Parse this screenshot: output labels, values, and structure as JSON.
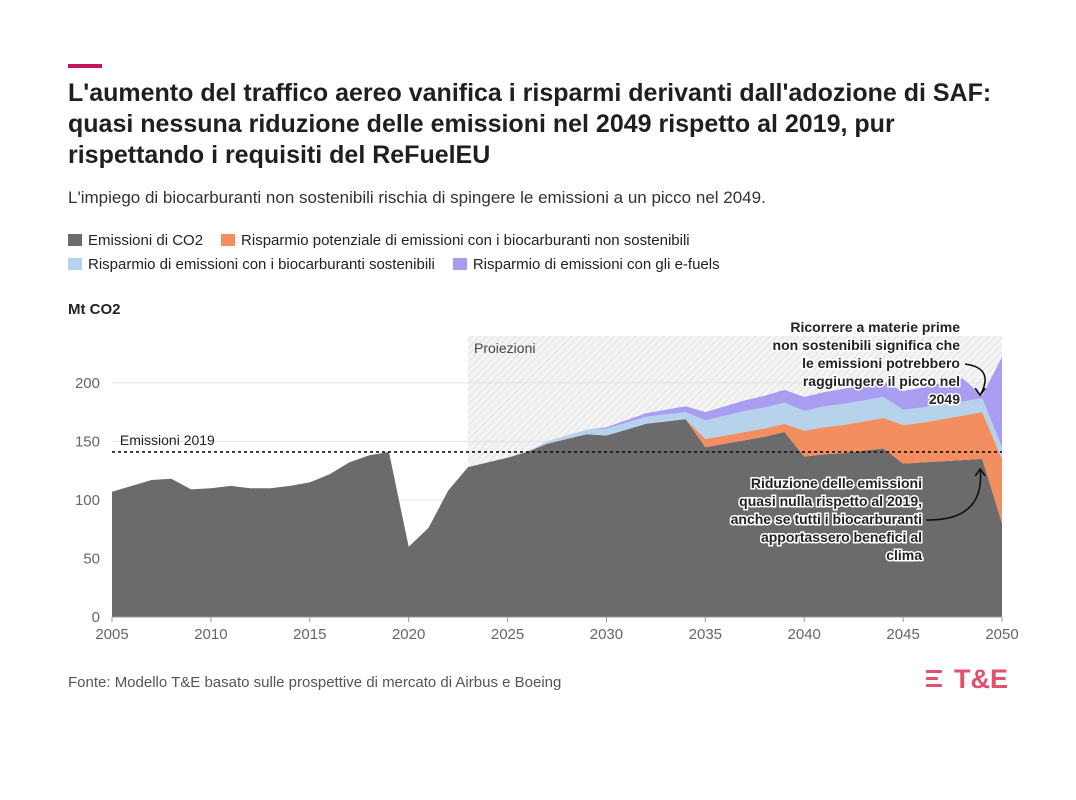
{
  "title": "L'aumento del traffico aereo vanifica i risparmi derivanti dall'adozione di SAF: quasi nessuna riduzione delle emissioni nel 2049 rispetto al 2019, pur rispettando i requisiti del ReFuelEU",
  "subtitle": "L'impiego di biocarburanti non sostenibili rischia di spingere le emissioni a un picco nel 2049.",
  "source": "Fonte: Modello T&E basato sulle prospettive di mercato di Airbus e Boeing",
  "logo": "T&E",
  "colors": {
    "accent": "#c2185b",
    "logo": "#e2506e"
  },
  "chart_data": {
    "type": "area",
    "ylabel": "Mt CO2",
    "xlim": [
      2005,
      2050
    ],
    "ylim": [
      0,
      240
    ],
    "x_ticks": [
      2005,
      2010,
      2015,
      2020,
      2025,
      2030,
      2035,
      2040,
      2045,
      2050
    ],
    "y_ticks": [
      0,
      50,
      100,
      150,
      200
    ],
    "grid": true,
    "legend_position": "top",
    "projection_start": 2023,
    "projection_label": "Proiezioni",
    "reference_line": {
      "value": 141,
      "label": "Emissioni 2019"
    },
    "x": [
      2005,
      2006,
      2007,
      2008,
      2009,
      2010,
      2011,
      2012,
      2013,
      2014,
      2015,
      2016,
      2017,
      2018,
      2019,
      2020,
      2021,
      2022,
      2023,
      2024,
      2025,
      2026,
      2027,
      2028,
      2029,
      2030,
      2031,
      2032,
      2033,
      2034,
      2035,
      2036,
      2037,
      2038,
      2039,
      2040,
      2041,
      2042,
      2043,
      2044,
      2045,
      2046,
      2047,
      2048,
      2049,
      2050
    ],
    "series": [
      {
        "name": "Emissioni di CO2",
        "color": "#6b6b6b",
        "values": [
          107,
          112,
          117,
          118,
          109,
          110,
          112,
          110,
          110,
          112,
          115,
          122,
          132,
          138,
          141,
          60,
          76,
          108,
          128,
          132,
          136,
          141,
          148,
          152,
          156,
          155,
          160,
          165,
          167,
          169,
          145,
          148,
          151,
          154,
          158,
          137,
          139,
          140,
          142,
          144,
          131,
          132,
          133,
          134,
          135,
          80
        ]
      },
      {
        "name": "Risparmio potenziale di emissioni con i biocarburanti non sostenibili",
        "color": "#f28e5f",
        "values": [
          0,
          0,
          0,
          0,
          0,
          0,
          0,
          0,
          0,
          0,
          0,
          0,
          0,
          0,
          0,
          0,
          0,
          0,
          0,
          0,
          0,
          0,
          0,
          0,
          0,
          0,
          0,
          0,
          0,
          0,
          7,
          7,
          7,
          7,
          7,
          22,
          23,
          24,
          25,
          26,
          33,
          34,
          36,
          38,
          40,
          55
        ]
      },
      {
        "name": "Risparmio di emissioni con i biocarburanti sostenibili",
        "color": "#b7d3ec",
        "values": [
          0,
          0,
          0,
          0,
          0,
          0,
          0,
          0,
          0,
          0,
          0,
          0,
          0,
          0,
          0,
          0,
          0,
          0,
          0,
          0,
          0,
          0,
          2,
          3,
          4,
          6,
          6,
          6,
          6,
          6,
          16,
          17,
          18,
          18,
          18,
          17,
          18,
          18,
          18,
          18,
          13,
          13,
          13,
          12,
          12,
          10
        ]
      },
      {
        "name": "Risparmio di emissioni con gli e-fuels",
        "color": "#a99df2",
        "values": [
          0,
          0,
          0,
          0,
          0,
          0,
          0,
          0,
          0,
          0,
          0,
          0,
          0,
          0,
          0,
          0,
          0,
          0,
          0,
          0,
          0,
          0,
          0,
          0,
          0,
          1,
          2,
          3,
          4,
          5,
          7,
          8,
          9,
          10,
          11,
          12,
          12,
          13,
          13,
          13,
          16,
          17,
          18,
          20,
          2,
          77
        ]
      }
    ],
    "annotations": [
      {
        "text": [
          "Ricorrere a materie prime",
          "non sostenibili significa che",
          "le emissioni potrebbero",
          "raggiungere il picco nel",
          "2049"
        ],
        "point": [
          2049,
          186
        ]
      },
      {
        "text": [
          "Riduzione delle emissioni",
          "quasi nulla rispetto al 2019,",
          "anche se tutti i biocarburanti",
          "apportassero benefici al",
          "clima"
        ],
        "point": [
          2049,
          135
        ]
      }
    ]
  }
}
